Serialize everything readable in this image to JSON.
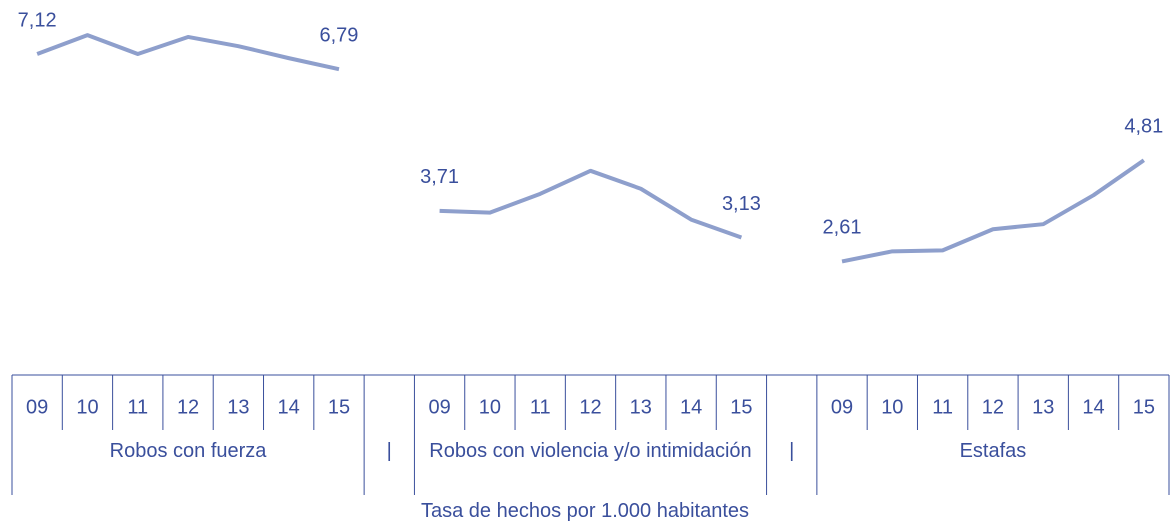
{
  "chart_data": {
    "type": "line",
    "x_label": "Tasa de hechos por 1.000 habitantes",
    "categories": [
      "09",
      "10",
      "11",
      "12",
      "13",
      "14",
      "15",
      null,
      "09",
      "10",
      "11",
      "12",
      "13",
      "14",
      "15",
      null,
      "09",
      "10",
      "11",
      "12",
      "13",
      "14",
      "15"
    ],
    "groups": [
      "Robos con fuerza",
      "|",
      "Robos con violencia y/o intimidación",
      "|",
      "Estafas"
    ],
    "series": [
      {
        "color": "#8e9fcc",
        "values": [
          7.12,
          7.53,
          7.12,
          7.49,
          7.29,
          7.03,
          6.79,
          null,
          3.71,
          3.67,
          4.08,
          4.58,
          4.19,
          3.52,
          3.13,
          null,
          2.61,
          2.83,
          2.85,
          3.31,
          3.42,
          4.05,
          4.81
        ],
        "value_labels": [
          "7,12",
          null,
          null,
          null,
          null,
          null,
          "6,79",
          null,
          "3,71",
          null,
          null,
          null,
          null,
          null,
          "3,13",
          null,
          "2,61",
          null,
          null,
          null,
          null,
          null,
          "4,81"
        ]
      }
    ],
    "ylim": [
      0,
      8
    ]
  }
}
